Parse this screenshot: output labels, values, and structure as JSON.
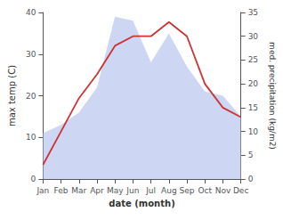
{
  "chart_data": {
    "type": "line",
    "categories": [
      "Jan",
      "Feb",
      "Mar",
      "Apr",
      "May",
      "Jun",
      "Jul",
      "Aug",
      "Sep",
      "Oct",
      "Nov",
      "Dec"
    ],
    "series": [
      {
        "type": "area",
        "color": "#b8c4ee",
        "values": [
          11,
          13,
          16,
          22,
          39,
          38,
          28,
          35,
          27,
          21,
          20,
          15
        ]
      },
      {
        "type": "line",
        "color": "#cc3333",
        "axis": "y2",
        "values": [
          3,
          10,
          17,
          22,
          28,
          30,
          30,
          33,
          30,
          20,
          15,
          13
        ]
      }
    ],
    "xlabel": "date (month)",
    "ylabel": "max temp (C)",
    "y2label": "med. precipitation (kg/m2)",
    "ylim": [
      0,
      40
    ],
    "yticks": [
      0,
      10,
      20,
      30,
      40
    ],
    "y2lim": [
      0,
      35
    ],
    "y2ticks": [
      0,
      5,
      10,
      15,
      20,
      25,
      30,
      35
    ],
    "grid": false
  }
}
